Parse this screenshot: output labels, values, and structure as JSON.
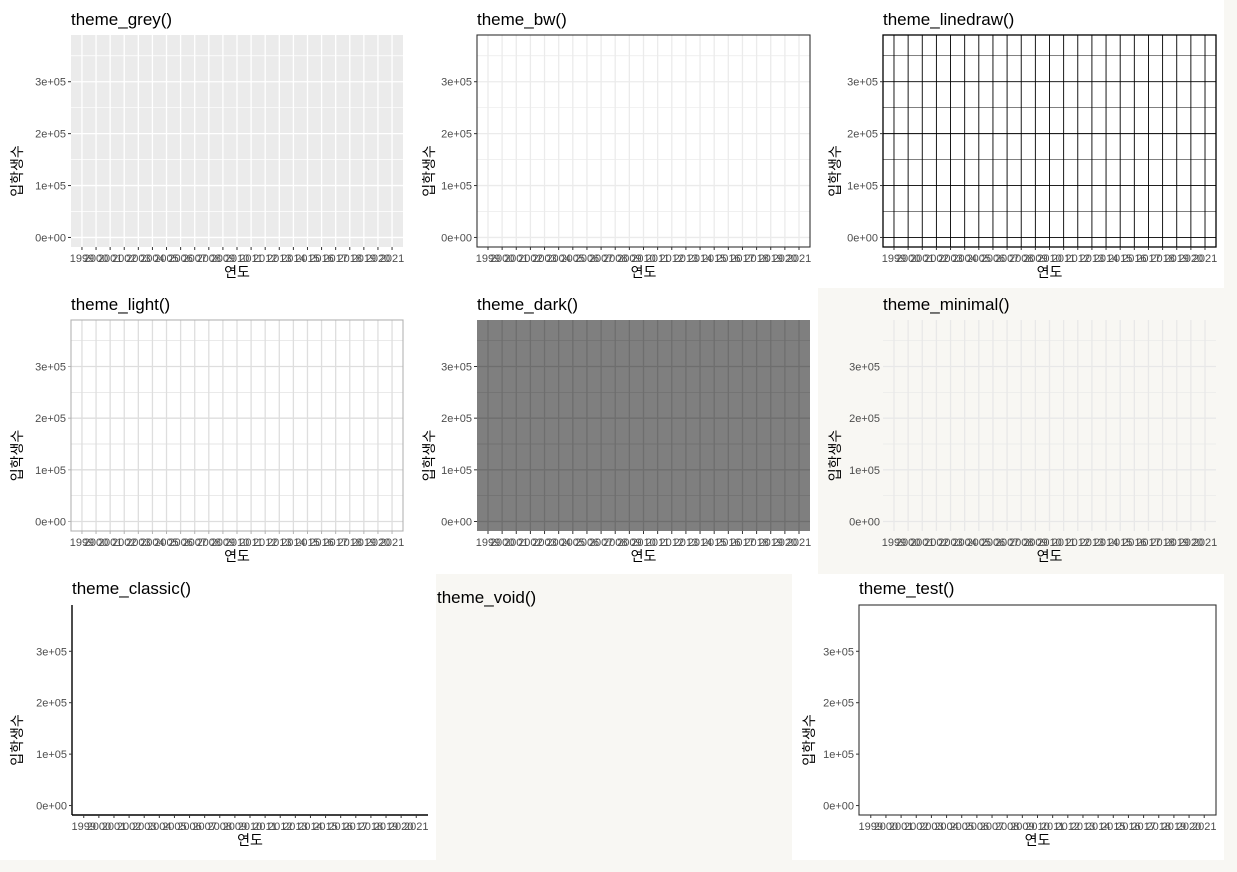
{
  "chart_data": [
    {
      "type": "line",
      "theme": "grey",
      "title": "theme_grey()",
      "xlabel": "연도",
      "ylabel": "입학생수",
      "x_ticks": [
        "1999",
        "2000",
        "2001",
        "2002",
        "2003",
        "2004",
        "2005",
        "2006",
        "2007",
        "2008",
        "2009",
        "2010",
        "2011",
        "2012",
        "2013",
        "2014",
        "2015",
        "2016",
        "2017",
        "2018",
        "2019",
        "2020",
        "2021"
      ],
      "y_ticks": [
        "0e+00",
        "1e+05",
        "2e+05",
        "3e+05"
      ],
      "y_tick_values": [
        0,
        100000,
        200000,
        300000
      ],
      "ylim": [
        0,
        390000
      ],
      "series": [],
      "grid": true,
      "panel_background": "#ebebeb",
      "grid_color": "#ffffff"
    },
    {
      "type": "line",
      "theme": "bw",
      "title": "theme_bw()",
      "xlabel": "연도",
      "ylabel": "입학생수",
      "x_ticks": [
        "1999",
        "2000",
        "2001",
        "2002",
        "2003",
        "2004",
        "2005",
        "2006",
        "2007",
        "2008",
        "2009",
        "2010",
        "2011",
        "2012",
        "2013",
        "2014",
        "2015",
        "2016",
        "2017",
        "2018",
        "2019",
        "2020",
        "2021"
      ],
      "y_ticks": [
        "0e+00",
        "1e+05",
        "2e+05",
        "3e+05"
      ],
      "y_tick_values": [
        0,
        100000,
        200000,
        300000
      ],
      "ylim": [
        0,
        390000
      ],
      "series": [],
      "grid": true,
      "panel_background": "#ffffff",
      "grid_color": "#ebebeb"
    },
    {
      "type": "line",
      "theme": "linedraw",
      "title": "theme_linedraw()",
      "xlabel": "연도",
      "ylabel": "입학생수",
      "x_ticks": [
        "1999",
        "2000",
        "2001",
        "2002",
        "2003",
        "2004",
        "2005",
        "2006",
        "2007",
        "2008",
        "2009",
        "2010",
        "2011",
        "2012",
        "2013",
        "2014",
        "2015",
        "2016",
        "2017",
        "2018",
        "2019",
        "2020",
        "2021"
      ],
      "y_ticks": [
        "0e+00",
        "1e+05",
        "2e+05",
        "3e+05"
      ],
      "y_tick_values": [
        0,
        100000,
        200000,
        300000
      ],
      "ylim": [
        0,
        390000
      ],
      "series": [],
      "grid": true,
      "panel_background": "#ffffff",
      "grid_color": "#000000"
    },
    {
      "type": "line",
      "theme": "light",
      "title": "theme_light()",
      "xlabel": "연도",
      "ylabel": "입학생수",
      "x_ticks": [
        "1999",
        "2000",
        "2001",
        "2002",
        "2003",
        "2004",
        "2005",
        "2006",
        "2007",
        "2008",
        "2009",
        "2010",
        "2011",
        "2012",
        "2013",
        "2014",
        "2015",
        "2016",
        "2017",
        "2018",
        "2019",
        "2020",
        "2021"
      ],
      "y_ticks": [
        "0e+00",
        "1e+05",
        "2e+05",
        "3e+05"
      ],
      "y_tick_values": [
        0,
        100000,
        200000,
        300000
      ],
      "ylim": [
        0,
        390000
      ],
      "series": [],
      "grid": true,
      "panel_background": "#ffffff",
      "grid_color": "#dedede"
    },
    {
      "type": "line",
      "theme": "dark",
      "title": "theme_dark()",
      "xlabel": "연도",
      "ylabel": "입학생수",
      "x_ticks": [
        "1999",
        "2000",
        "2001",
        "2002",
        "2003",
        "2004",
        "2005",
        "2006",
        "2007",
        "2008",
        "2009",
        "2010",
        "2011",
        "2012",
        "2013",
        "2014",
        "2015",
        "2016",
        "2017",
        "2018",
        "2019",
        "2020",
        "2021"
      ],
      "y_ticks": [
        "0e+00",
        "1e+05",
        "2e+05",
        "3e+05"
      ],
      "y_tick_values": [
        0,
        100000,
        200000,
        300000
      ],
      "ylim": [
        0,
        390000
      ],
      "series": [],
      "grid": true,
      "panel_background": "#7f7f7f",
      "grid_color": "#6e6e6e"
    },
    {
      "type": "line",
      "theme": "minimal",
      "title": "theme_minimal()",
      "xlabel": "연도",
      "ylabel": "입학생수",
      "x_ticks": [
        "1999",
        "2000",
        "2001",
        "2002",
        "2003",
        "2004",
        "2005",
        "2006",
        "2007",
        "2008",
        "2009",
        "2010",
        "2011",
        "2012",
        "2013",
        "2014",
        "2015",
        "2016",
        "2017",
        "2018",
        "2019",
        "2020",
        "2021"
      ],
      "y_ticks": [
        "0e+00",
        "1e+05",
        "2e+05",
        "3e+05"
      ],
      "y_tick_values": [
        0,
        100000,
        200000,
        300000
      ],
      "ylim": [
        0,
        390000
      ],
      "series": [],
      "grid": true,
      "panel_background": "#f8f7f3",
      "grid_color": "#e8e8e8"
    },
    {
      "type": "line",
      "theme": "classic",
      "title": "theme_classic()",
      "xlabel": "연도",
      "ylabel": "입학생수",
      "x_ticks": [
        "1999",
        "2000",
        "2001",
        "2002",
        "2003",
        "2004",
        "2005",
        "2006",
        "2007",
        "2008",
        "2009",
        "2010",
        "2011",
        "2012",
        "2013",
        "2014",
        "2015",
        "2016",
        "2017",
        "2018",
        "2019",
        "2020",
        "2021"
      ],
      "y_ticks": [
        "0e+00",
        "1e+05",
        "2e+05",
        "3e+05"
      ],
      "y_tick_values": [
        0,
        100000,
        200000,
        300000
      ],
      "ylim": [
        0,
        390000
      ],
      "series": [],
      "grid": false,
      "panel_background": "#ffffff"
    },
    {
      "type": "line",
      "theme": "void",
      "title": "theme_void()",
      "xlabel": "",
      "ylabel": "",
      "x_ticks": [],
      "y_ticks": [],
      "series": [],
      "grid": false,
      "panel_background": "#f8f7f3"
    },
    {
      "type": "line",
      "theme": "test",
      "title": "theme_test()",
      "xlabel": "연도",
      "ylabel": "입학생수",
      "x_ticks": [
        "1999",
        "2000",
        "2001",
        "2002",
        "2003",
        "2004",
        "2005",
        "2006",
        "2007",
        "2008",
        "2009",
        "2010",
        "2011",
        "2012",
        "2013",
        "2014",
        "2015",
        "2016",
        "2017",
        "2018",
        "2019",
        "2020",
        "2021"
      ],
      "y_ticks": [
        "0e+00",
        "1e+05",
        "2e+05",
        "3e+05"
      ],
      "y_tick_values": [
        0,
        100000,
        200000,
        300000
      ],
      "ylim": [
        0,
        390000
      ],
      "series": [],
      "grid": false,
      "panel_background": "#ffffff"
    }
  ]
}
